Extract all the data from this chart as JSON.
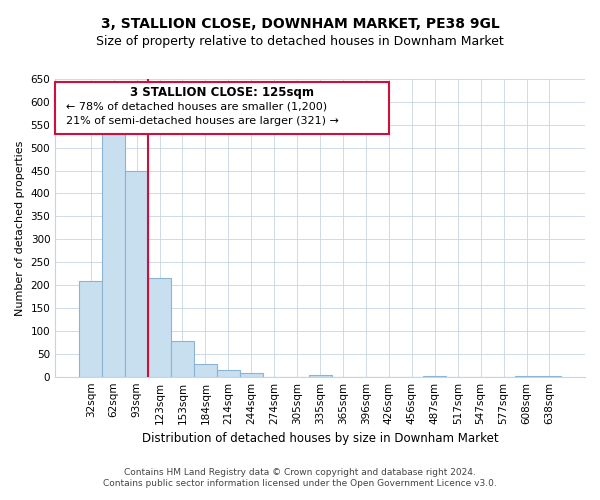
{
  "title": "3, STALLION CLOSE, DOWNHAM MARKET, PE38 9GL",
  "subtitle": "Size of property relative to detached houses in Downham Market",
  "xlabel": "Distribution of detached houses by size in Downham Market",
  "ylabel": "Number of detached properties",
  "bar_labels": [
    "32sqm",
    "62sqm",
    "93sqm",
    "123sqm",
    "153sqm",
    "184sqm",
    "214sqm",
    "244sqm",
    "274sqm",
    "305sqm",
    "335sqm",
    "365sqm",
    "396sqm",
    "426sqm",
    "456sqm",
    "487sqm",
    "517sqm",
    "547sqm",
    "577sqm",
    "608sqm",
    "638sqm"
  ],
  "bar_values": [
    210,
    530,
    450,
    215,
    78,
    28,
    15,
    8,
    0,
    0,
    3,
    0,
    0,
    0,
    0,
    1,
    0,
    0,
    0,
    1,
    1
  ],
  "bar_color": "#c8dff0",
  "bar_edge_color": "#8ab4d4",
  "highlight_bar_index": 3,
  "highlight_bar_color": "#d0103a",
  "vline_x": 2.5,
  "vline_color": "#d0103a",
  "ylim": [
    0,
    650
  ],
  "yticks": [
    0,
    50,
    100,
    150,
    200,
    250,
    300,
    350,
    400,
    450,
    500,
    550,
    600,
    650
  ],
  "annotation_title": "3 STALLION CLOSE: 125sqm",
  "annotation_line1": "← 78% of detached houses are smaller (1,200)",
  "annotation_line2": "21% of semi-detached houses are larger (321) →",
  "annotation_box_color": "#ffffff",
  "annotation_box_edge_color": "#d0103a",
  "grid_color": "#c8d4e0",
  "background_color": "#ffffff",
  "footer_line1": "Contains HM Land Registry data © Crown copyright and database right 2024.",
  "footer_line2": "Contains public sector information licensed under the Open Government Licence v3.0.",
  "title_fontsize": 10,
  "subtitle_fontsize": 9,
  "ylabel_fontsize": 8,
  "xlabel_fontsize": 8.5,
  "tick_fontsize": 7.5,
  "annotation_title_fontsize": 8.5,
  "annotation_text_fontsize": 8,
  "footer_fontsize": 6.5
}
